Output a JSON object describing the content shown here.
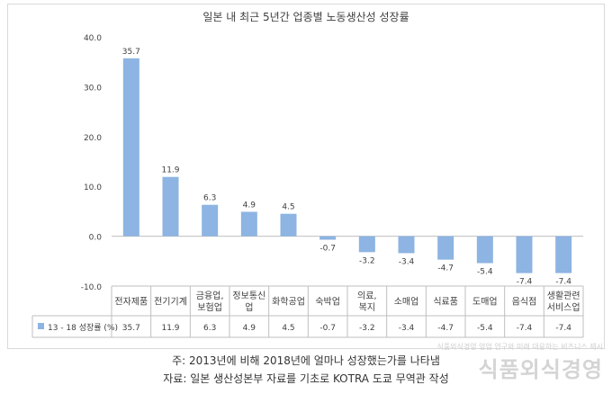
{
  "chart_data": {
    "type": "bar",
    "title": "일본 내 최근 5년간 업종별 노동생산성 성장률",
    "categories": [
      [
        "전자제품"
      ],
      [
        "전기기계"
      ],
      [
        "금융업,",
        "보험업"
      ],
      [
        "정보통신",
        "업"
      ],
      [
        "화학공업"
      ],
      [
        "숙박업"
      ],
      [
        "의료,",
        "복지"
      ],
      [
        "소매업"
      ],
      [
        "식료품"
      ],
      [
        "도매업"
      ],
      [
        "음식점"
      ],
      [
        "생활관련",
        "서비스업"
      ]
    ],
    "series": [
      {
        "name": "13 - 18 성장률 (%)",
        "values": [
          35.7,
          11.9,
          6.3,
          4.9,
          4.5,
          -0.7,
          -3.2,
          -3.4,
          -4.7,
          -5.4,
          -7.4,
          -7.4
        ],
        "color": "#8db4e2"
      }
    ],
    "value_labels": [
      "35.7",
      "11.9",
      "6.3",
      "4.9",
      "4.5",
      "-0.7",
      "-3.2",
      "-3.4",
      "-4.7",
      "-5.4",
      "-7.4",
      "-7.4"
    ],
    "ylim": [
      -10,
      40
    ],
    "yticks": [
      -10,
      0,
      10,
      20,
      30,
      40
    ],
    "ytick_labels": [
      "-10.0",
      "0.0",
      "10.0",
      "20.0",
      "30.0",
      "40.0"
    ],
    "grid": false,
    "legend": "data-table"
  },
  "notes": {
    "line1": "주: 2013년에 비해 2018년에 얼마나 성장했는가를 나타냄",
    "line2": "자료: 일본 생산성본부 자료를 기초로 KOTRA 도쿄 무역관 작성"
  },
  "watermark": {
    "sub": "식품외식경영 영업 연구와 미래 대응하는 비즈니스 제시",
    "main": "식품외식경영"
  }
}
